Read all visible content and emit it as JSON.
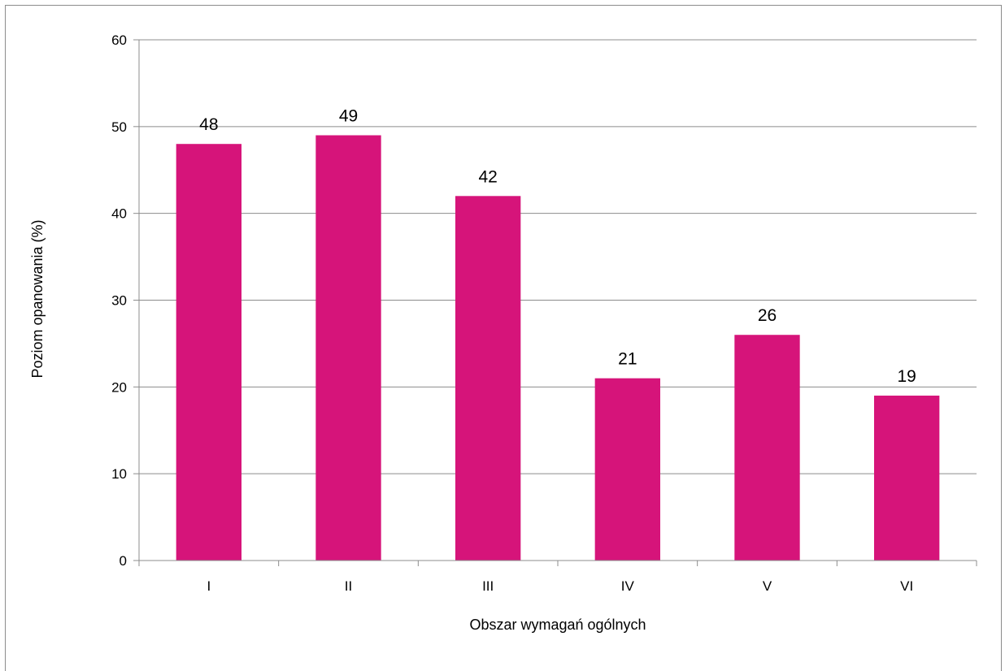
{
  "chart_data": {
    "type": "bar",
    "categories": [
      "I",
      "II",
      "III",
      "IV",
      "V",
      "VI"
    ],
    "values": [
      48,
      49,
      42,
      21,
      26,
      19
    ],
    "data_labels": [
      "48",
      "49",
      "42",
      "21",
      "26",
      "19"
    ],
    "y_ticks": [
      "0",
      "10",
      "20",
      "30",
      "40",
      "50",
      "60"
    ],
    "title": "",
    "xlabel": "Obszar wymagań ogólnych",
    "ylabel": "Poziom opanowania (%)",
    "ylim": [
      0,
      60
    ],
    "grid": true,
    "legend": "none",
    "bar_color": "#D6147A",
    "grid_color": "#8C8C8C"
  }
}
